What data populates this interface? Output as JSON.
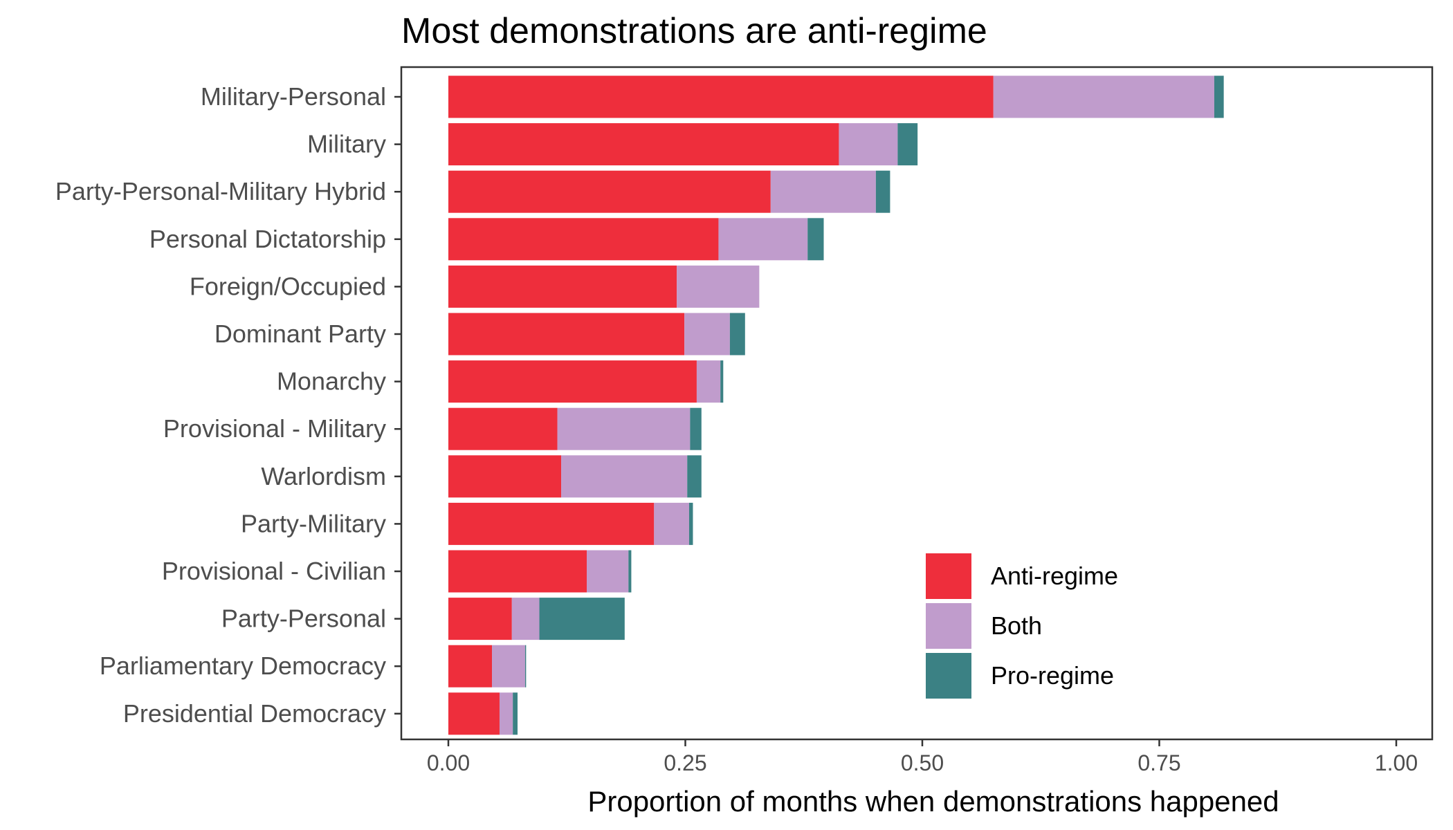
{
  "chart_data": {
    "type": "bar",
    "orientation": "horizontal",
    "stacked": true,
    "title": "Most demonstrations are anti-regime",
    "xlabel": "Proportion of months when demonstrations happened",
    "ylabel": "",
    "xlim": [
      0,
      1.0
    ],
    "xticks": [
      "0.00",
      "0.25",
      "0.50",
      "0.75",
      "1.00"
    ],
    "xtick_values": [
      0,
      0.25,
      0.5,
      0.75,
      1.0
    ],
    "grid": false,
    "legend_position": "bottom-right inside",
    "categories": [
      "Military-Personal",
      "Military",
      "Party-Personal-Military Hybrid",
      "Personal Dictatorship",
      "Foreign/Occupied",
      "Dominant Party",
      "Monarchy",
      "Provisional - Military",
      "Warlordism",
      "Party-Military",
      "Provisional - Civilian",
      "Party-Personal",
      "Parliamentary Democracy",
      "Presidential Democracy"
    ],
    "series": [
      {
        "name": "Anti-regime",
        "color": "#ee2e3c",
        "values": [
          0.575,
          0.412,
          0.34,
          0.285,
          0.241,
          0.249,
          0.262,
          0.115,
          0.119,
          0.217,
          0.146,
          0.067,
          0.046,
          0.054
        ]
      },
      {
        "name": "Both",
        "color": "#c09ccc",
        "values": [
          0.233,
          0.062,
          0.111,
          0.094,
          0.087,
          0.048,
          0.025,
          0.14,
          0.133,
          0.037,
          0.044,
          0.029,
          0.035,
          0.014
        ]
      },
      {
        "name": "Pro-regime",
        "color": "#3b8184",
        "values": [
          0.01,
          0.021,
          0.015,
          0.017,
          0.0,
          0.016,
          0.003,
          0.012,
          0.015,
          0.004,
          0.003,
          0.09,
          0.001,
          0.005
        ]
      }
    ]
  }
}
